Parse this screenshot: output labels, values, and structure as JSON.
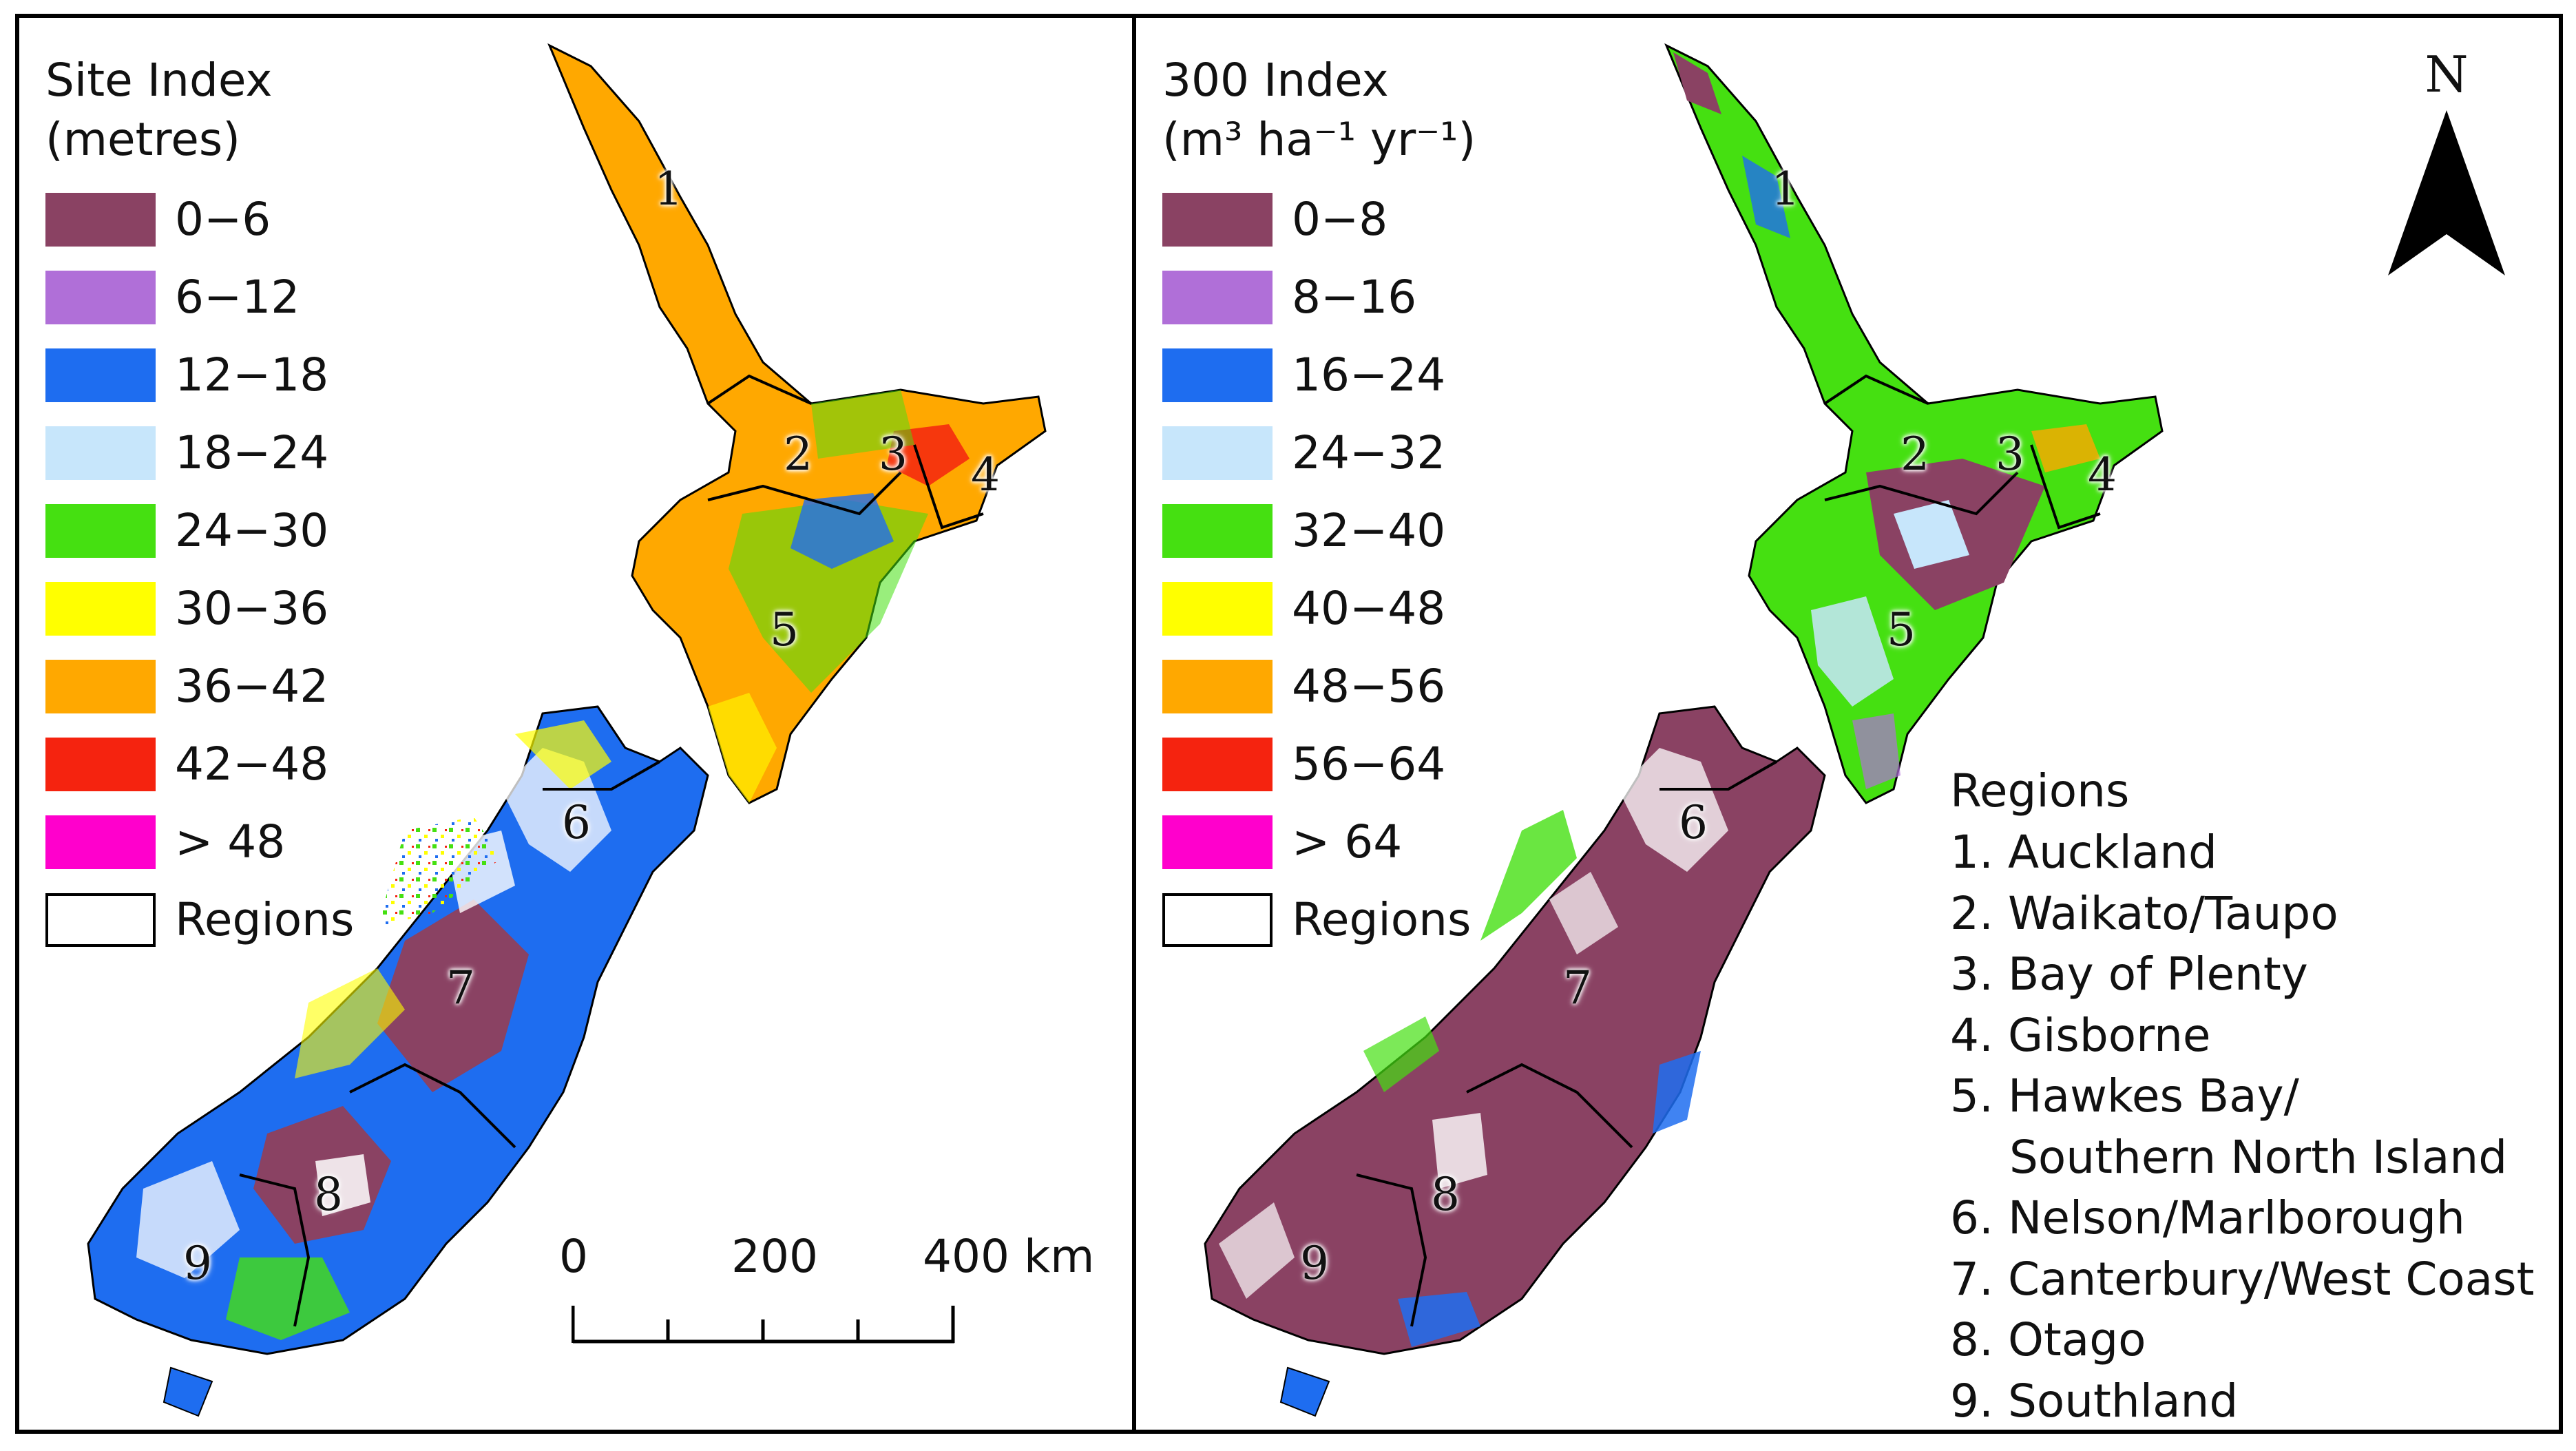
{
  "colors": {
    "c1": "#8a4263",
    "c2": "#b06fd8",
    "c3": "#1e6df0",
    "c4": "#c7e6fb",
    "c5": "#45e011",
    "c6": "#ffff00",
    "c7": "#ffa800",
    "c8": "#f5230f",
    "c9": "#ff00cc",
    "boundary": "#000000"
  },
  "left_panel": {
    "legend": {
      "title_line1": "Site Index",
      "title_line2": "(metres)",
      "classes": [
        "0−6",
        "6−12",
        "12−18",
        "18−24",
        "24−30",
        "30−36",
        "36−42",
        "42−48",
        "> 48"
      ],
      "regions_label": "Regions"
    },
    "scale_bar": {
      "labels": [
        "0",
        "200",
        "400 km"
      ]
    }
  },
  "right_panel": {
    "legend": {
      "title_line1": "300 Index",
      "title_line2": "(m³ ha⁻¹ yr⁻¹)",
      "classes": [
        "0−8",
        "8−16",
        "16−24",
        "24−32",
        "32−40",
        "40−48",
        "48−56",
        "56−64",
        "> 64"
      ],
      "regions_label": "Regions"
    },
    "north_arrow": {
      "label": "N"
    },
    "regions_list": {
      "title": "Regions",
      "items": [
        "1. Auckland",
        "2. Waikato/Taupo",
        "3. Bay of Plenty",
        "4. Gisborne",
        "5. Hawkes Bay/",
        "Southern North Island",
        "6. Nelson/Marlborough",
        "7. Canterbury/West Coast",
        "8. Otago",
        "9. Southland"
      ]
    }
  },
  "region_numbers": [
    "1",
    "2",
    "3",
    "4",
    "5",
    "6",
    "7",
    "8",
    "9"
  ]
}
